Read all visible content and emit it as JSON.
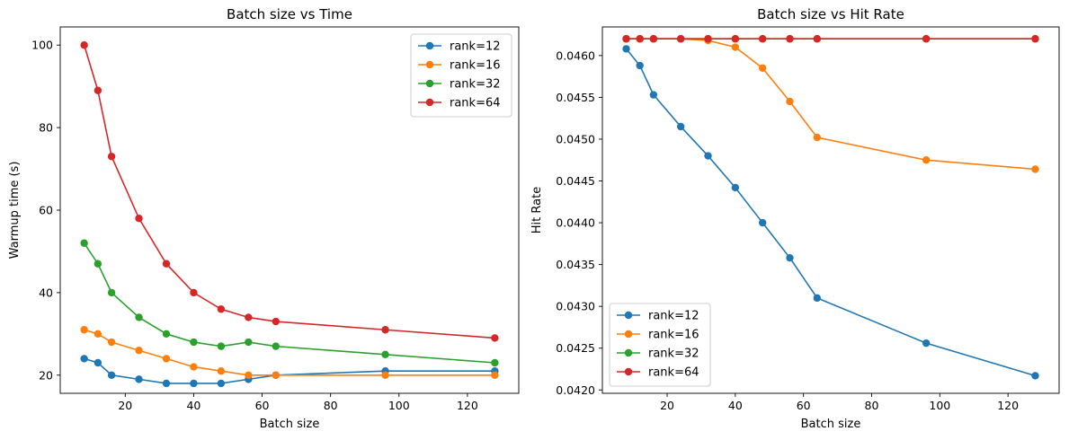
{
  "chart_data": [
    {
      "type": "line",
      "title": "Batch size vs Time",
      "xlabel": "Batch size",
      "ylabel": "Warmup time (s)",
      "xlim": [
        1.0,
        135.0
      ],
      "ylim": [
        15.6,
        104.4
      ],
      "xticks": [
        20,
        40,
        60,
        80,
        100,
        120
      ],
      "yticks": [
        20,
        40,
        60,
        80,
        100
      ],
      "xtick_labels": [
        "20",
        "40",
        "60",
        "80",
        "100",
        "120"
      ],
      "ytick_labels": [
        "20",
        "40",
        "60",
        "80",
        "100"
      ],
      "legend_position": "upper right",
      "x": [
        8,
        12,
        16,
        24,
        32,
        40,
        48,
        56,
        64,
        96,
        128
      ],
      "series": [
        {
          "name": "rank=12",
          "color": "#1f77b4",
          "values": [
            24,
            23,
            20,
            19,
            18,
            18,
            18,
            19,
            20,
            21,
            21
          ]
        },
        {
          "name": "rank=16",
          "color": "#ff7f0e",
          "values": [
            31,
            30,
            28,
            26,
            24,
            22,
            21,
            20,
            20,
            20,
            20
          ]
        },
        {
          "name": "rank=32",
          "color": "#2ca02c",
          "values": [
            52,
            47,
            40,
            34,
            30,
            28,
            27,
            28,
            27,
            25,
            23
          ]
        },
        {
          "name": "rank=64",
          "color": "#d62728",
          "values": [
            100,
            89,
            73,
            58,
            47,
            40,
            36,
            34,
            33,
            31,
            29
          ]
        }
      ]
    },
    {
      "type": "line",
      "title": "Batch size vs Hit Rate",
      "xlabel": "Batch size",
      "ylabel": "Hit Rate",
      "xlim": [
        1.0,
        135.0
      ],
      "ylim": [
        0.04196,
        0.046342
      ],
      "xticks": [
        20,
        40,
        60,
        80,
        100,
        120
      ],
      "yticks": [
        0.042,
        0.0425,
        0.043,
        0.0435,
        0.044,
        0.0445,
        0.045,
        0.0455,
        0.046
      ],
      "xtick_labels": [
        "20",
        "40",
        "60",
        "80",
        "100",
        "120"
      ],
      "ytick_labels": [
        "0.0420",
        "0.0425",
        "0.0430",
        "0.0435",
        "0.0440",
        "0.0445",
        "0.0450",
        "0.0455",
        "0.0460"
      ],
      "legend_position": "lower left",
      "x": [
        8,
        12,
        16,
        24,
        32,
        40,
        48,
        56,
        64,
        96,
        128
      ],
      "series": [
        {
          "name": "rank=12",
          "color": "#1f77b4",
          "values": [
            0.04608,
            0.04588,
            0.04553,
            0.04515,
            0.0448,
            0.04442,
            0.044,
            0.04358,
            0.0431,
            0.04256,
            0.04217
          ]
        },
        {
          "name": "rank=16",
          "color": "#ff7f0e",
          "values": [
            0.0462,
            0.0462,
            0.0462,
            0.0462,
            0.04618,
            0.0461,
            0.04585,
            0.04545,
            0.04502,
            0.04475,
            0.04464
          ]
        },
        {
          "name": "rank=32",
          "color": "#2ca02c",
          "values": [
            0.0462,
            0.0462,
            0.0462,
            0.0462,
            0.0462,
            0.0462,
            0.0462,
            0.0462,
            0.0462,
            0.0462,
            0.0462
          ]
        },
        {
          "name": "rank=64",
          "color": "#d62728",
          "values": [
            0.0462,
            0.0462,
            0.0462,
            0.0462,
            0.0462,
            0.0462,
            0.0462,
            0.0462,
            0.0462,
            0.0462,
            0.0462
          ]
        }
      ]
    }
  ]
}
